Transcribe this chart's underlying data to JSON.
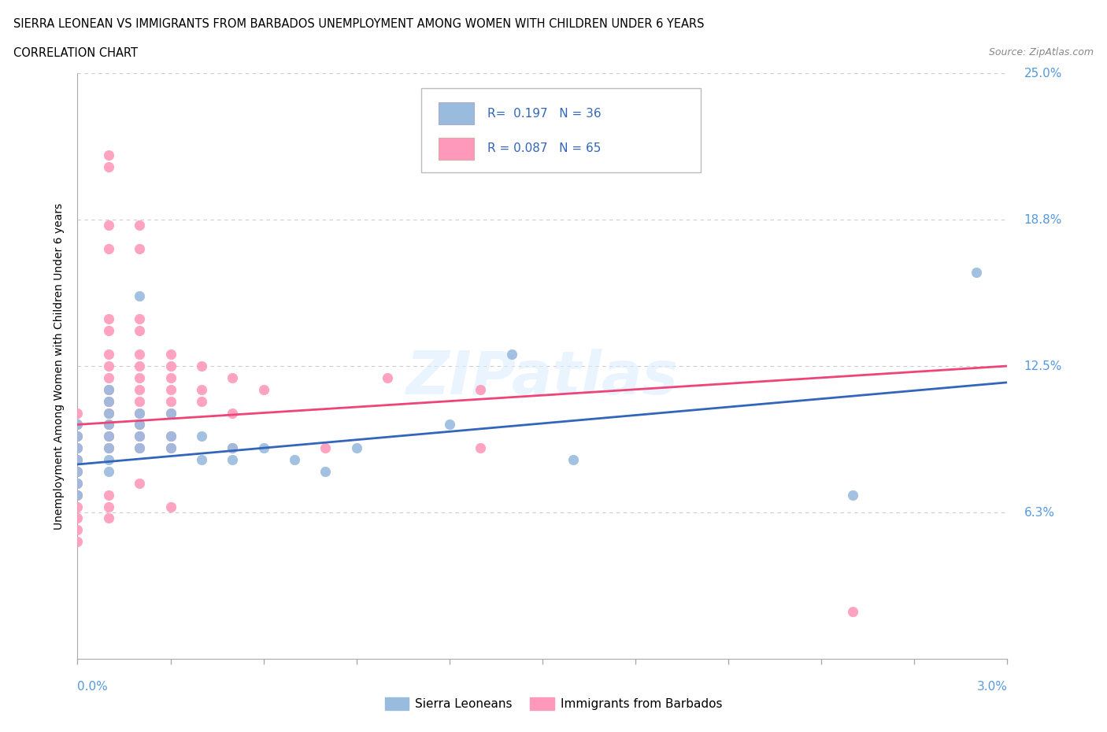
{
  "title_line1": "SIERRA LEONEAN VS IMMIGRANTS FROM BARBADOS UNEMPLOYMENT AMONG WOMEN WITH CHILDREN UNDER 6 YEARS",
  "title_line2": "CORRELATION CHART",
  "source": "Source: ZipAtlas.com",
  "ylabel": "Unemployment Among Women with Children Under 6 years",
  "yticks": [
    0.0,
    0.0625,
    0.125,
    0.1875,
    0.25
  ],
  "ytick_labels": [
    "",
    "6.3%",
    "12.5%",
    "18.8%",
    "25.0%"
  ],
  "xmin": 0.0,
  "xmax": 0.03,
  "ymin": 0.0,
  "ymax": 0.25,
  "sierra_color": "#99BBDD",
  "barbados_color": "#FF99BB",
  "sierra_line_color": "#3366BB",
  "barbados_line_color": "#EE4477",
  "sierra_R": 0.197,
  "sierra_N": 36,
  "barbados_R": 0.087,
  "barbados_N": 65,
  "sierra_points": [
    [
      0.0,
      0.1
    ],
    [
      0.0,
      0.095
    ],
    [
      0.0,
      0.09
    ],
    [
      0.0,
      0.085
    ],
    [
      0.0,
      0.08
    ],
    [
      0.0,
      0.075
    ],
    [
      0.0,
      0.07
    ],
    [
      0.001,
      0.115
    ],
    [
      0.001,
      0.11
    ],
    [
      0.001,
      0.105
    ],
    [
      0.001,
      0.1
    ],
    [
      0.001,
      0.095
    ],
    [
      0.001,
      0.09
    ],
    [
      0.001,
      0.085
    ],
    [
      0.001,
      0.08
    ],
    [
      0.002,
      0.155
    ],
    [
      0.002,
      0.105
    ],
    [
      0.002,
      0.1
    ],
    [
      0.002,
      0.095
    ],
    [
      0.002,
      0.09
    ],
    [
      0.003,
      0.105
    ],
    [
      0.003,
      0.095
    ],
    [
      0.003,
      0.09
    ],
    [
      0.004,
      0.095
    ],
    [
      0.004,
      0.085
    ],
    [
      0.005,
      0.09
    ],
    [
      0.005,
      0.085
    ],
    [
      0.006,
      0.09
    ],
    [
      0.007,
      0.085
    ],
    [
      0.008,
      0.08
    ],
    [
      0.009,
      0.09
    ],
    [
      0.012,
      0.1
    ],
    [
      0.014,
      0.13
    ],
    [
      0.016,
      0.085
    ],
    [
      0.025,
      0.07
    ],
    [
      0.029,
      0.165
    ]
  ],
  "barbados_points": [
    [
      0.0,
      0.105
    ],
    [
      0.0,
      0.1
    ],
    [
      0.0,
      0.095
    ],
    [
      0.0,
      0.09
    ],
    [
      0.0,
      0.085
    ],
    [
      0.0,
      0.08
    ],
    [
      0.0,
      0.075
    ],
    [
      0.0,
      0.07
    ],
    [
      0.0,
      0.065
    ],
    [
      0.0,
      0.06
    ],
    [
      0.0,
      0.055
    ],
    [
      0.0,
      0.05
    ],
    [
      0.001,
      0.215
    ],
    [
      0.001,
      0.21
    ],
    [
      0.001,
      0.185
    ],
    [
      0.001,
      0.175
    ],
    [
      0.001,
      0.145
    ],
    [
      0.001,
      0.14
    ],
    [
      0.001,
      0.13
    ],
    [
      0.001,
      0.125
    ],
    [
      0.001,
      0.12
    ],
    [
      0.001,
      0.115
    ],
    [
      0.001,
      0.11
    ],
    [
      0.001,
      0.105
    ],
    [
      0.001,
      0.1
    ],
    [
      0.001,
      0.095
    ],
    [
      0.001,
      0.09
    ],
    [
      0.001,
      0.07
    ],
    [
      0.001,
      0.065
    ],
    [
      0.001,
      0.06
    ],
    [
      0.002,
      0.185
    ],
    [
      0.002,
      0.175
    ],
    [
      0.002,
      0.145
    ],
    [
      0.002,
      0.14
    ],
    [
      0.002,
      0.13
    ],
    [
      0.002,
      0.125
    ],
    [
      0.002,
      0.12
    ],
    [
      0.002,
      0.115
    ],
    [
      0.002,
      0.11
    ],
    [
      0.002,
      0.105
    ],
    [
      0.002,
      0.1
    ],
    [
      0.002,
      0.095
    ],
    [
      0.002,
      0.09
    ],
    [
      0.002,
      0.075
    ],
    [
      0.003,
      0.13
    ],
    [
      0.003,
      0.125
    ],
    [
      0.003,
      0.12
    ],
    [
      0.003,
      0.115
    ],
    [
      0.003,
      0.11
    ],
    [
      0.003,
      0.105
    ],
    [
      0.003,
      0.095
    ],
    [
      0.003,
      0.09
    ],
    [
      0.003,
      0.065
    ],
    [
      0.004,
      0.125
    ],
    [
      0.004,
      0.115
    ],
    [
      0.004,
      0.11
    ],
    [
      0.005,
      0.12
    ],
    [
      0.005,
      0.105
    ],
    [
      0.005,
      0.09
    ],
    [
      0.006,
      0.115
    ],
    [
      0.008,
      0.09
    ],
    [
      0.01,
      0.12
    ],
    [
      0.013,
      0.115
    ],
    [
      0.013,
      0.09
    ],
    [
      0.025,
      0.02
    ]
  ],
  "watermark": "ZIPatlas",
  "background_color": "#ffffff",
  "grid_color": "#cccccc",
  "sierra_trend": [
    0.083,
    0.118
  ],
  "barbados_trend": [
    0.1,
    0.125
  ]
}
